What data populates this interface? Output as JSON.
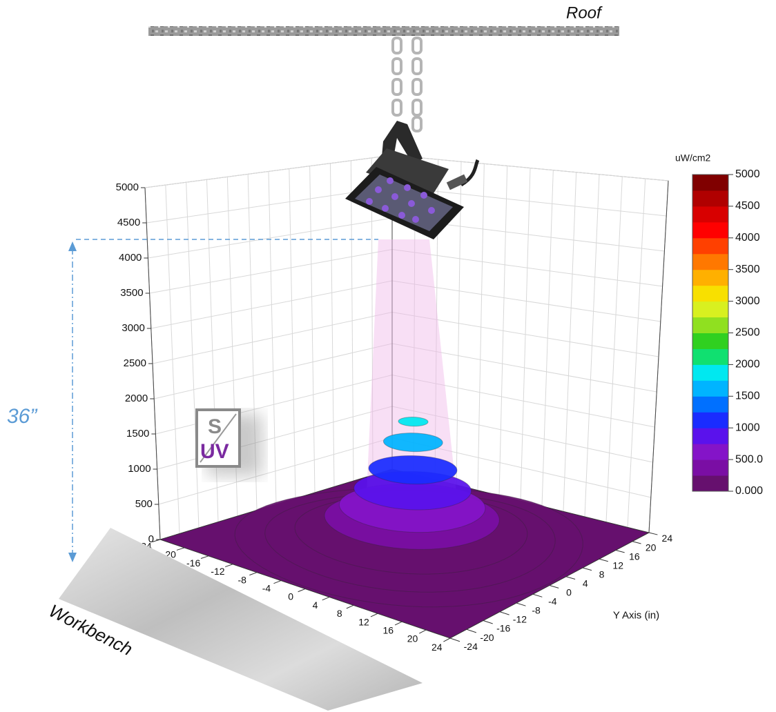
{
  "roof_label": "Roof",
  "workbench_label": "Workbench",
  "height_label": "36”",
  "logo": {
    "top": "S",
    "bottom": "UV"
  },
  "chart_data": {
    "type": "surface3d",
    "xlim": [
      -24,
      24
    ],
    "xticks": [
      -24,
      -20,
      -16,
      -12,
      -8,
      -4,
      0,
      4,
      8,
      12,
      16,
      20,
      24
    ],
    "ylim": [
      -24,
      24
    ],
    "yticks": [
      -24,
      -20,
      -16,
      -12,
      -8,
      -4,
      0,
      4,
      8,
      12,
      16,
      20,
      24
    ],
    "y_label": "Y Axis (in)",
    "zlim": [
      0,
      5000
    ],
    "zticks": [
      0,
      500,
      1000,
      1500,
      2000,
      2500,
      3000,
      3500,
      4000,
      4500,
      5000
    ],
    "grid": true,
    "surface": {
      "radius": [
        24,
        20,
        16,
        12,
        10,
        8,
        6,
        4,
        2,
        0
      ],
      "values": [
        30,
        80,
        180,
        380,
        550,
        800,
        1100,
        1500,
        1800,
        1900
      ]
    },
    "colorbar": {
      "title": "uW/cm2",
      "lim": [
        0,
        5000
      ],
      "ticks": [
        {
          "value": 0,
          "label": "0.000"
        },
        {
          "value": 500,
          "label": "500.0"
        },
        1000,
        1500,
        2000,
        2500,
        3000,
        3500,
        4000,
        4500,
        5000
      ],
      "colors": [
        "#66106e",
        "#7a0ea4",
        "#8414c8",
        "#5a12ec",
        "#1a2cff",
        "#0070ff",
        "#00b4ff",
        "#00e8f0",
        "#10e070",
        "#30d020",
        "#90e020",
        "#d8f020",
        "#f8e000",
        "#ffb000",
        "#ff7800",
        "#ff4000",
        "#ff0000",
        "#d80000",
        "#b00000",
        "#800000"
      ]
    }
  }
}
